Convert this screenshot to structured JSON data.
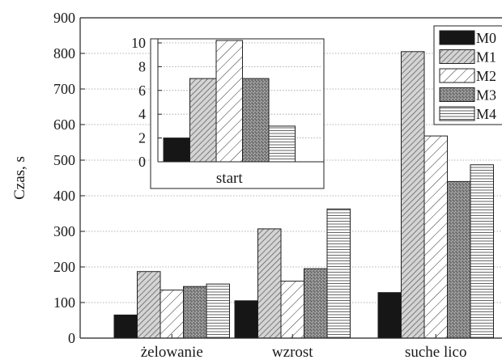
{
  "chart_data": [
    {
      "type": "bar",
      "categories": [
        "żelowanie",
        "wzrost",
        "suche lico"
      ],
      "ylabel": "Czas, s",
      "xlabel": "",
      "ylim": [
        0,
        900
      ],
      "yticks": [
        "0",
        "100",
        "200",
        "300",
        "400",
        "500",
        "600",
        "700",
        "800",
        "900"
      ],
      "grid": true,
      "legend_position": "top-right",
      "series": [
        {
          "name": "M0",
          "values": [
            65,
            105,
            128
          ]
        },
        {
          "name": "M1",
          "values": [
            187,
            307,
            805
          ]
        },
        {
          "name": "M2",
          "values": [
            135,
            160,
            568
          ]
        },
        {
          "name": "M3",
          "values": [
            145,
            195,
            440
          ]
        },
        {
          "name": "M4",
          "values": [
            152,
            363,
            487
          ]
        }
      ]
    },
    {
      "type": "bar",
      "categories": [
        "start"
      ],
      "ylim": [
        0,
        10
      ],
      "yticks": [
        "0",
        "2",
        "4",
        "6",
        "8",
        "10"
      ],
      "series": [
        {
          "name": "M0",
          "values": [
            2
          ]
        },
        {
          "name": "M1",
          "values": [
            7
          ]
        },
        {
          "name": "M2",
          "values": [
            10.2
          ]
        },
        {
          "name": "M3",
          "values": [
            7
          ]
        },
        {
          "name": "M4",
          "values": [
            3
          ]
        }
      ]
    }
  ]
}
